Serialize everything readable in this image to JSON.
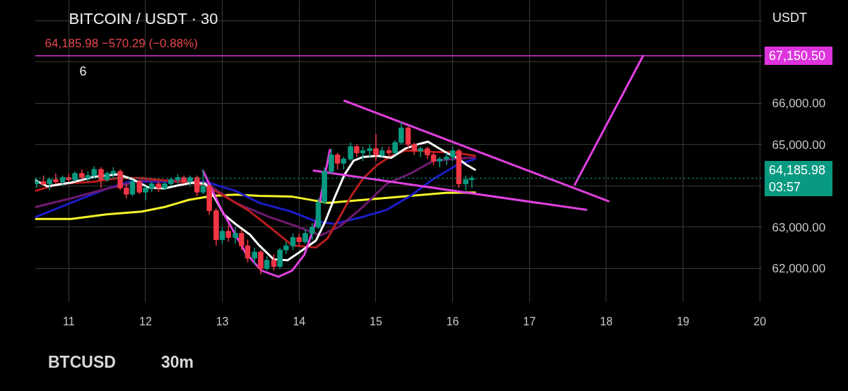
{
  "chart_data": {
    "type": "candlestick",
    "title": "BITCOIN / USDT · 30",
    "subtitle": "64,185.98 −570.29 (−0.88%)",
    "x": [
      10.58,
      10.67,
      10.75,
      10.83,
      10.92,
      11.0,
      11.08,
      11.17,
      11.25,
      11.33,
      11.42,
      11.5,
      11.58,
      11.67,
      11.75,
      11.83,
      11.92,
      12.0,
      12.08,
      12.17,
      12.25,
      12.33,
      12.42,
      12.5,
      12.58,
      12.67,
      12.75,
      12.83,
      12.92,
      13.0,
      13.08,
      13.17,
      13.25,
      13.33,
      13.42,
      13.5,
      13.58,
      13.67,
      13.75,
      13.83,
      13.92,
      14.0,
      14.08,
      14.17,
      14.25,
      14.33,
      14.42,
      14.5,
      14.58,
      14.67,
      14.75,
      14.83,
      14.92,
      15.0,
      15.08,
      15.17,
      15.25,
      15.33,
      15.42,
      15.5,
      15.58,
      15.67,
      15.75,
      15.83,
      15.92,
      16.0,
      16.08,
      16.17,
      16.25
    ],
    "ohlc": [
      [
        64050,
        64200,
        63950,
        64100
      ],
      [
        64100,
        64250,
        64000,
        64050
      ],
      [
        64050,
        64200,
        63900,
        64150
      ],
      [
        64150,
        64300,
        64050,
        64100
      ],
      [
        64100,
        64250,
        64000,
        64200
      ],
      [
        64200,
        64300,
        64100,
        64150
      ],
      [
        64150,
        64350,
        64100,
        64300
      ],
      [
        64300,
        64400,
        64150,
        64200
      ],
      [
        64200,
        64350,
        64100,
        64250
      ],
      [
        64250,
        64480,
        64200,
        64400
      ],
      [
        64400,
        64450,
        63950,
        64150
      ],
      [
        64150,
        64350,
        64100,
        64300
      ],
      [
        64300,
        64450,
        64200,
        64350
      ],
      [
        64350,
        64400,
        63900,
        63950
      ],
      [
        63950,
        64050,
        63700,
        63800
      ],
      [
        63800,
        64150,
        63750,
        64100
      ],
      [
        64100,
        64150,
        63800,
        63850
      ],
      [
        63850,
        64000,
        63650,
        63950
      ],
      [
        63950,
        64100,
        63850,
        64050
      ],
      [
        64050,
        64100,
        63850,
        63950
      ],
      [
        63950,
        64100,
        63900,
        64050
      ],
      [
        64050,
        64200,
        64000,
        64150
      ],
      [
        64150,
        64280,
        64050,
        64200
      ],
      [
        64200,
        64250,
        64050,
        64100
      ],
      [
        64100,
        64250,
        64000,
        64200
      ],
      [
        64200,
        64250,
        63750,
        63850
      ],
      [
        63850,
        64400,
        63800,
        64000
      ],
      [
        64000,
        64050,
        63300,
        63400
      ],
      [
        63400,
        63450,
        62550,
        62700
      ],
      [
        62700,
        63000,
        62600,
        62900
      ],
      [
        62900,
        63050,
        62650,
        62750
      ],
      [
        62750,
        63000,
        62600,
        62850
      ],
      [
        62850,
        62950,
        62450,
        62550
      ],
      [
        62550,
        62700,
        62150,
        62250
      ],
      [
        62250,
        62500,
        62100,
        62400
      ],
      [
        62400,
        62450,
        61860,
        62000
      ],
      [
        62000,
        62300,
        61950,
        62200
      ],
      [
        62200,
        62350,
        61950,
        62050
      ],
      [
        62050,
        62500,
        62000,
        62450
      ],
      [
        62450,
        62650,
        62350,
        62550
      ],
      [
        62550,
        62850,
        62450,
        62750
      ],
      [
        62750,
        62850,
        62550,
        62650
      ],
      [
        62650,
        62950,
        62600,
        62850
      ],
      [
        62850,
        63100,
        62700,
        63000
      ],
      [
        63000,
        63700,
        62950,
        63600
      ],
      [
        63600,
        64450,
        63550,
        64350
      ],
      [
        64350,
        64900,
        64300,
        64750
      ],
      [
        64750,
        64800,
        64400,
        64550
      ],
      [
        64550,
        64700,
        64400,
        64650
      ],
      [
        64650,
        65050,
        64600,
        64950
      ],
      [
        64950,
        65000,
        64700,
        64800
      ],
      [
        64800,
        64950,
        64600,
        64850
      ],
      [
        64850,
        65000,
        64700,
        64900
      ],
      [
        64900,
        65250,
        64600,
        64750
      ],
      [
        64750,
        64950,
        64700,
        64850
      ],
      [
        64850,
        64950,
        64700,
        64800
      ],
      [
        64800,
        65100,
        64750,
        65050
      ],
      [
        65050,
        65550,
        65000,
        65400
      ],
      [
        65400,
        65450,
        64900,
        65000
      ],
      [
        65000,
        65050,
        64750,
        64850
      ],
      [
        64850,
        64950,
        64700,
        64900
      ],
      [
        64900,
        64950,
        64650,
        64750
      ],
      [
        64750,
        64800,
        64500,
        64600
      ],
      [
        64600,
        64700,
        64450,
        64650
      ],
      [
        64650,
        64800,
        64500,
        64700
      ],
      [
        64700,
        64950,
        64600,
        64850
      ],
      [
        64850,
        64900,
        63950,
        64050
      ],
      [
        64050,
        64250,
        63880,
        64150
      ],
      [
        64150,
        64250,
        63950,
        64185.98
      ]
    ],
    "colors": [
      "#089981",
      "#f23645",
      "#089981",
      "#f23645",
      "#089981",
      "#f23645",
      "#089981",
      "#f23645",
      "#089981",
      "#089981",
      "#f23645",
      "#089981",
      "#089981",
      "#f23645",
      "#f23645",
      "#089981",
      "#f23645",
      "#089981",
      "#089981",
      "#f23645",
      "#089981",
      "#089981",
      "#089981",
      "#f23645",
      "#089981",
      "#f23645",
      "#089981",
      "#f23645",
      "#f23645",
      "#089981",
      "#f23645",
      "#089981",
      "#f23645",
      "#f23645",
      "#089981",
      "#f23645",
      "#089981",
      "#f23645",
      "#089981",
      "#089981",
      "#089981",
      "#f23645",
      "#089981",
      "#089981",
      "#089981",
      "#089981",
      "#089981",
      "#f23645",
      "#089981",
      "#089981",
      "#f23645",
      "#089981",
      "#089981",
      "#f23645",
      "#089981",
      "#f23645",
      "#089981",
      "#089981",
      "#f23645",
      "#f23645",
      "#089981",
      "#f23645",
      "#f23645",
      "#089981",
      "#089981",
      "#089981",
      "#f23645",
      "#089981",
      "#089981"
    ],
    "series": [
      {
        "type": "line",
        "color": "#f5f52a",
        "x": [
          10.57,
          11.03,
          11.49,
          11.95,
          12.25,
          12.56,
          12.87,
          13.17,
          13.48,
          13.91,
          14.37,
          14.83,
          15.45,
          15.91,
          16.29
        ],
        "values": [
          63200,
          63200,
          63310,
          63380,
          63490,
          63660,
          63760,
          63790,
          63760,
          63740,
          63590,
          63660,
          63760,
          63830,
          63840
        ]
      },
      {
        "type": "line",
        "color": "#1c1cc8",
        "x": [
          10.57,
          11.03,
          11.49,
          11.79,
          12.25,
          12.78,
          13.17,
          13.48,
          13.91,
          14.22,
          14.46,
          14.83,
          15.14,
          15.45,
          15.75,
          16.06,
          16.29
        ],
        "values": [
          63250,
          63590,
          63930,
          64100,
          64100,
          64100,
          63880,
          63590,
          63370,
          63140,
          63080,
          63250,
          63420,
          63760,
          64170,
          64510,
          64650
        ]
      },
      {
        "type": "line",
        "color": "#6e1a6e",
        "x": [
          10.57,
          11.03,
          11.49,
          11.95,
          12.4,
          12.78,
          13.17,
          13.61,
          13.97,
          14.28,
          14.53,
          14.83,
          15.14,
          15.45,
          15.75,
          16.29
        ],
        "values": [
          63490,
          63700,
          63930,
          64130,
          64130,
          64080,
          63590,
          63250,
          63020,
          62800,
          63020,
          63490,
          64050,
          64300,
          64610,
          64690
        ]
      },
      {
        "type": "line",
        "color": "#b81c1c",
        "x": [
          10.57,
          10.87,
          11.33,
          11.64,
          11.95,
          12.25,
          12.56,
          12.78,
          13.02,
          13.33,
          13.64,
          13.91,
          14.22,
          14.37,
          14.53,
          14.68,
          14.83,
          15.02,
          15.2,
          15.38,
          15.57,
          15.75,
          15.94,
          16.12,
          16.29
        ],
        "values": [
          63880,
          64050,
          64100,
          64190,
          64190,
          64130,
          64080,
          64010,
          63760,
          63420,
          62970,
          62560,
          62510,
          62730,
          63250,
          63760,
          64170,
          64510,
          64730,
          64850,
          64850,
          64820,
          64820,
          64780,
          64730
        ]
      },
      {
        "type": "line",
        "color": "#ffffff",
        "x": [
          10.57,
          10.72,
          11.03,
          11.33,
          11.64,
          11.83,
          12.04,
          12.25,
          12.44,
          12.62,
          12.78,
          12.87,
          13.02,
          13.17,
          13.36,
          13.48,
          13.67,
          13.85,
          14.0,
          14.22,
          14.34,
          14.46,
          14.59,
          14.71,
          14.83,
          15.02,
          15.2,
          15.38,
          15.57,
          15.68,
          15.75,
          15.94,
          16.06,
          16.18,
          16.29
        ],
        "values": [
          64130,
          63990,
          64080,
          64220,
          64280,
          64160,
          63960,
          63940,
          64020,
          64080,
          64050,
          63820,
          63310,
          63080,
          62820,
          62560,
          62220,
          62200,
          62390,
          62680,
          63140,
          63710,
          64270,
          64610,
          64700,
          64730,
          64680,
          64900,
          65020,
          65070,
          64990,
          64780,
          64680,
          64510,
          64390
        ]
      },
      {
        "type": "line",
        "color": "#e040e0",
        "x": [
          12.75,
          12.99,
          13.3,
          13.51,
          13.73,
          13.91,
          14.07,
          14.22,
          14.4
        ],
        "values": [
          64360,
          63420,
          62390,
          61950,
          61800,
          61950,
          62340,
          63140,
          64870
        ]
      },
      {
        "type": "line",
        "color": "#e040e0",
        "x": [
          14.59,
          18.03
        ],
        "values": [
          66060,
          63630
        ]
      },
      {
        "type": "line",
        "color": "#e040e0",
        "x": [
          14.19,
          17.74
        ],
        "values": [
          64370,
          63420
        ]
      },
      {
        "type": "line",
        "color": "#e040e0",
        "x": [
          17.59,
          18.48
        ],
        "values": [
          64030,
          67150
        ]
      }
    ],
    "xlim": [
      10.56,
      20.03
    ],
    "xticks": [
      11,
      12,
      13,
      14,
      15,
      16,
      17,
      18,
      19,
      20
    ],
    "ylim": [
      61180,
      68490
    ],
    "yticks": [
      {
        "value": 62000,
        "label": "62,000.00"
      },
      {
        "value": 63000,
        "label": "63,000.00"
      },
      {
        "value": 64000,
        "label": null
      },
      {
        "value": 65000,
        "label": "65,000.00"
      },
      {
        "value": 66000,
        "label": "66,000.00"
      },
      {
        "value": 67000,
        "label": null
      },
      {
        "value": 68000,
        "label": null
      }
    ],
    "grid": true,
    "ref_lines": [
      {
        "axis": "y",
        "value": 67150.5,
        "label": "67,150.50",
        "color": "#dd33dd",
        "line_style": "solid"
      },
      {
        "axis": "y",
        "value": 64185.98,
        "label": "64,185.98",
        "color": "#089981",
        "line_style": "dotted"
      }
    ],
    "annotations": [
      "03:57",
      "6",
      "USDT",
      "BTCUSD",
      "30m"
    ]
  }
}
